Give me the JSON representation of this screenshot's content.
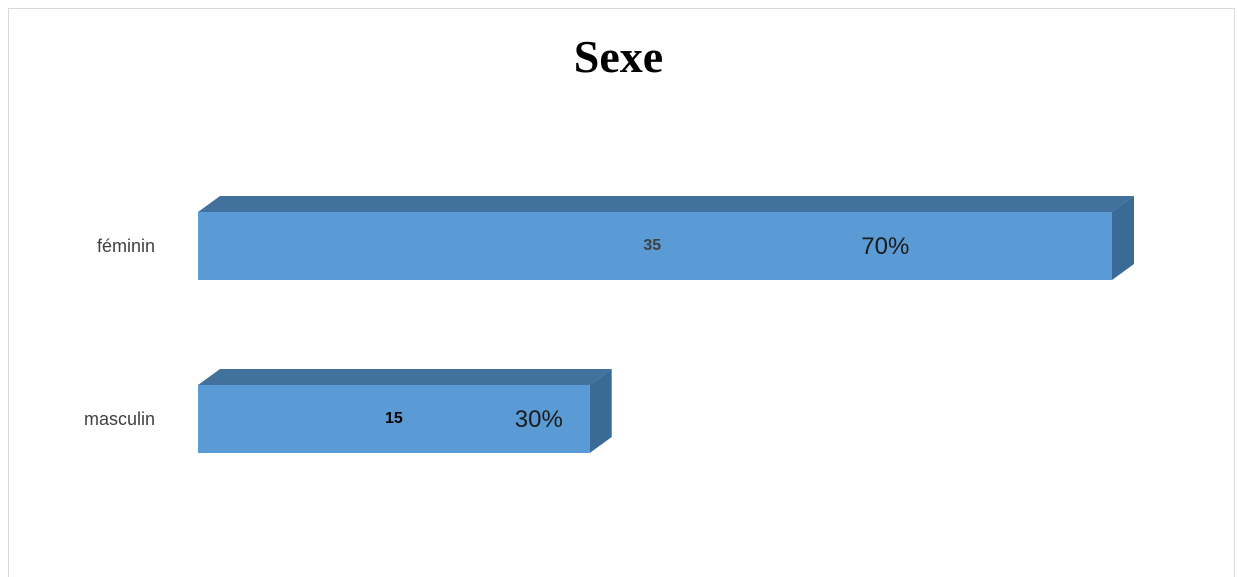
{
  "chart_data": {
    "type": "bar",
    "orientation": "horizontal",
    "style": "3d",
    "title": "Sexe",
    "categories": [
      "féminin",
      "masculin"
    ],
    "values": [
      35,
      15
    ],
    "percent_labels": [
      "70%",
      "30%"
    ],
    "count_labels": [
      "35",
      "15"
    ],
    "xlim": [
      0,
      35
    ],
    "grid": false,
    "legend": "none",
    "colors": {
      "bar_front": "#5b9bd5",
      "bar_top": "#41719c",
      "bar_side": "#3a6a96",
      "count_label_feminin": "#404040",
      "count_label_masculin": "#000000"
    }
  }
}
